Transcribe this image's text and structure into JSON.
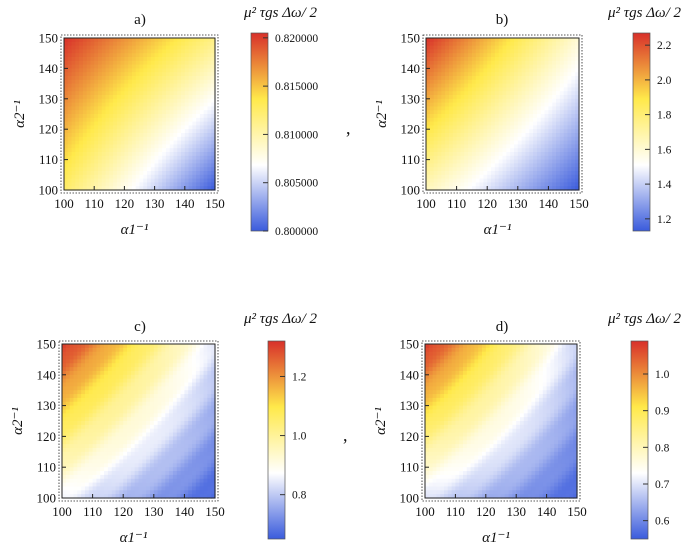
{
  "chart_data": [
    {
      "type": "heatmap",
      "title": "a)",
      "xlabel": "α1⁻¹",
      "ylabel": "α2⁻¹",
      "x_ticks": [
        "100",
        "110",
        "120",
        "130",
        "140",
        "150"
      ],
      "y_ticks": [
        "100",
        "110",
        "120",
        "130",
        "140",
        "150"
      ],
      "xlim": [
        100,
        150
      ],
      "ylim": [
        100,
        150
      ],
      "colorbar": {
        "title": "μ² τgs Δω/ 2",
        "range": [
          0.8,
          0.8205
        ],
        "ticks": [
          0.8,
          0.805,
          0.81,
          0.815,
          0.82
        ],
        "tick_labels": [
          "0.800000",
          "0.805000",
          "0.810000",
          "0.815000",
          "0.820000"
        ]
      },
      "corner_values": {
        "x100_y150": 0.8205,
        "x150_y100": 0.8,
        "x100_y100": 0.8125,
        "x150_y150": 0.8115
      },
      "colormap": [
        "#3a5bdc",
        "#ffffff",
        "#ffe94a",
        "#d8302a"
      ],
      "ripple": 0.0
    },
    {
      "type": "heatmap",
      "title": "b)",
      "xlabel": "α1⁻¹",
      "ylabel": "α2⁻¹",
      "x_ticks": [
        "100",
        "110",
        "120",
        "130",
        "140",
        "150"
      ],
      "y_ticks": [
        "100",
        "110",
        "120",
        "130",
        "140",
        "150"
      ],
      "xlim": [
        100,
        150
      ],
      "ylim": [
        100,
        150
      ],
      "colorbar": {
        "title": "μ² τgs Δω/ 2",
        "range": [
          1.13,
          2.27
        ],
        "ticks": [
          1.2,
          1.4,
          1.6,
          1.8,
          2.0,
          2.2
        ],
        "tick_labels": [
          "1.2",
          "1.4",
          "1.6",
          "1.8",
          "2.0",
          "2.2"
        ]
      },
      "corner_values": {
        "x100_y150": 2.27,
        "x150_y100": 1.13,
        "x100_y100": 1.65,
        "x150_y150": 1.6
      },
      "colormap": [
        "#3a5bdc",
        "#ffffff",
        "#ffe94a",
        "#d8302a"
      ],
      "ripple": 0.0
    },
    {
      "type": "heatmap",
      "title": "c)",
      "xlabel": "α1⁻¹",
      "ylabel": "α2⁻¹",
      "x_ticks": [
        "100",
        "110",
        "120",
        "130",
        "140",
        "150"
      ],
      "y_ticks": [
        "100",
        "110",
        "120",
        "130",
        "140",
        "150"
      ],
      "xlim": [
        100,
        150
      ],
      "ylim": [
        100,
        150
      ],
      "colorbar": {
        "title": "μ² τgs Δω/ 2",
        "range": [
          0.65,
          1.32
        ],
        "ticks": [
          0.8,
          1.0,
          1.2
        ],
        "tick_labels": [
          "0.8",
          "1.0",
          "1.2"
        ]
      },
      "corner_values": {
        "x100_y150": 1.32,
        "x150_y100": 0.66,
        "x100_y100": 0.86,
        "x150_y150": 0.84
      },
      "colormap": [
        "#3a5bdc",
        "#ffffff",
        "#ffe94a",
        "#d8302a"
      ],
      "ripple": 0.03
    },
    {
      "type": "heatmap",
      "title": "d)",
      "xlabel": "α1⁻¹",
      "ylabel": "α2⁻¹",
      "x_ticks": [
        "100",
        "110",
        "120",
        "130",
        "140",
        "150"
      ],
      "y_ticks": [
        "100",
        "110",
        "120",
        "130",
        "140",
        "150"
      ],
      "xlim": [
        100,
        150
      ],
      "ylim": [
        100,
        150
      ],
      "colorbar": {
        "title": "μ² τgs Δω/ 2",
        "range": [
          0.55,
          1.09
        ],
        "ticks": [
          0.6,
          0.7,
          0.8,
          0.9,
          1.0
        ],
        "tick_labels": [
          "0.6",
          "0.7",
          "0.8",
          "0.9",
          "1.0"
        ]
      },
      "corner_values": {
        "x100_y150": 1.09,
        "x150_y100": 0.56,
        "x100_y100": 0.7,
        "x150_y150": 0.68
      },
      "colormap": [
        "#3a5bdc",
        "#ffffff",
        "#ffe94a",
        "#d8302a"
      ],
      "ripple": 0.025
    }
  ],
  "separators": [
    ",",
    ","
  ]
}
